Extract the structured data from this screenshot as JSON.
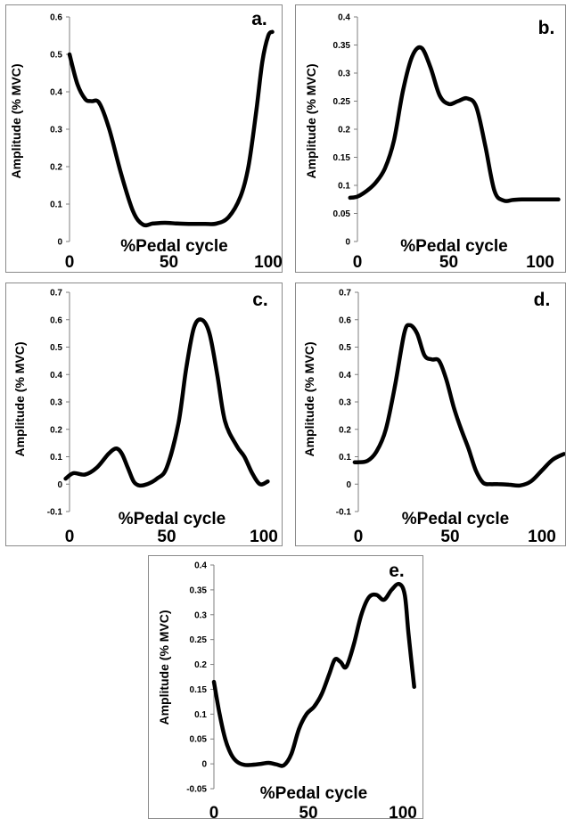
{
  "chart_data": [
    {
      "type": "line",
      "panel_label": "a.",
      "xlabel": "%Pedal cycle",
      "ylabel": "Amplitude (% MVC)",
      "xlim": [
        0,
        100
      ],
      "ylim": [
        0,
        0.6
      ],
      "yticks": [
        0,
        0.1,
        0.2,
        0.3,
        0.4,
        0.5,
        0.6
      ],
      "ytick_labels": [
        "0",
        "0.1",
        "0.2",
        "0.3",
        "0.4",
        "0.5",
        "0.6"
      ],
      "xticks": [
        0,
        50,
        100
      ],
      "xtick_labels": [
        "0",
        "50",
        "100"
      ],
      "series": [
        {
          "x": [
            0,
            4,
            8,
            11,
            15,
            20,
            26,
            32,
            37,
            42,
            48,
            54,
            60,
            68,
            74,
            80,
            86,
            90,
            94,
            97,
            100,
            102
          ],
          "y": [
            0.5,
            0.42,
            0.38,
            0.375,
            0.37,
            0.3,
            0.18,
            0.08,
            0.045,
            0.048,
            0.05,
            0.048,
            0.047,
            0.047,
            0.048,
            0.065,
            0.12,
            0.2,
            0.35,
            0.48,
            0.55,
            0.56
          ]
        }
      ]
    },
    {
      "type": "line",
      "panel_label": "b.",
      "xlabel": "%Pedal cycle",
      "ylabel": "Amplitude (% MVC)",
      "xlim": [
        0,
        100
      ],
      "ylim": [
        0,
        0.4
      ],
      "yticks": [
        0,
        0.05,
        0.1,
        0.15,
        0.2,
        0.25,
        0.3,
        0.35,
        0.4
      ],
      "ytick_labels": [
        "0",
        "0.05",
        "0.1",
        "0.15",
        "0.2",
        "0.25",
        "0.3",
        "0.35",
        "0.4"
      ],
      "xticks": [
        0,
        50,
        100
      ],
      "xtick_labels": [
        "0",
        "50",
        "100"
      ],
      "series": [
        {
          "x": [
            -4,
            0,
            5,
            10,
            15,
            20,
            25,
            30,
            35,
            40,
            45,
            50,
            55,
            60,
            65,
            70,
            75,
            80,
            85,
            90,
            100,
            110
          ],
          "y": [
            0.078,
            0.08,
            0.09,
            0.105,
            0.13,
            0.18,
            0.27,
            0.33,
            0.345,
            0.31,
            0.26,
            0.245,
            0.25,
            0.255,
            0.24,
            0.17,
            0.09,
            0.073,
            0.074,
            0.075,
            0.075,
            0.075
          ]
        }
      ]
    },
    {
      "type": "line",
      "panel_label": "c.",
      "xlabel": "%Pedal cycle",
      "ylabel": "Amplitude (% MVC)",
      "xlim": [
        0,
        100
      ],
      "ylim": [
        -0.1,
        0.7
      ],
      "yticks": [
        -0.1,
        0,
        0.1,
        0.2,
        0.3,
        0.4,
        0.5,
        0.6,
        0.7
      ],
      "ytick_labels": [
        "-0.1",
        "0",
        "0.1",
        "0.2",
        "0.3",
        "0.4",
        "0.5",
        "0.6",
        "0.7"
      ],
      "xticks": [
        0,
        50,
        100
      ],
      "xtick_labels": [
        "0",
        "50",
        "100"
      ],
      "series": [
        {
          "x": [
            -2,
            2,
            8,
            14,
            20,
            24,
            27,
            30,
            33,
            36,
            40,
            45,
            50,
            56,
            60,
            64,
            68,
            72,
            76,
            80,
            86,
            90,
            94,
            98,
            102
          ],
          "y": [
            0.02,
            0.04,
            0.035,
            0.06,
            0.11,
            0.13,
            0.11,
            0.06,
            0.01,
            -0.005,
            0.0,
            0.02,
            0.06,
            0.22,
            0.42,
            0.57,
            0.6,
            0.55,
            0.4,
            0.23,
            0.14,
            0.1,
            0.04,
            0.0,
            0.01
          ]
        }
      ]
    },
    {
      "type": "line",
      "panel_label": "d.",
      "xlabel": "%Pedal cycle",
      "ylabel": "Amplitude (% MVC)",
      "xlim": [
        0,
        100
      ],
      "ylim": [
        -0.1,
        0.7
      ],
      "yticks": [
        -0.1,
        0,
        0.1,
        0.2,
        0.3,
        0.4,
        0.5,
        0.6,
        0.7
      ],
      "ytick_labels": [
        "-0.1",
        "0",
        "0.1",
        "0.2",
        "0.3",
        "0.4",
        "0.5",
        "0.6",
        "0.7"
      ],
      "xticks": [
        0,
        50,
        100
      ],
      "xtick_labels": [
        "0",
        "50",
        "100"
      ],
      "series": [
        {
          "x": [
            -2,
            0,
            5,
            10,
            15,
            20,
            25,
            28,
            32,
            36,
            40,
            44,
            48,
            52,
            56,
            60,
            64,
            68,
            72,
            76,
            82,
            88,
            94,
            100,
            106,
            112
          ],
          "y": [
            0.08,
            0.08,
            0.085,
            0.12,
            0.2,
            0.36,
            0.55,
            0.58,
            0.55,
            0.47,
            0.455,
            0.45,
            0.38,
            0.28,
            0.2,
            0.13,
            0.05,
            0.005,
            0.0,
            0.0,
            -0.002,
            -0.005,
            0.01,
            0.05,
            0.09,
            0.11
          ]
        }
      ]
    },
    {
      "type": "line",
      "panel_label": "e.",
      "xlabel": "%Pedal cycle",
      "ylabel": "Amplitude (% MVC)",
      "xlim": [
        0,
        100
      ],
      "ylim": [
        -0.05,
        0.4
      ],
      "yticks": [
        -0.05,
        0,
        0.05,
        0.1,
        0.15,
        0.2,
        0.25,
        0.3,
        0.35,
        0.4
      ],
      "ytick_labels": [
        "-0.05",
        "0",
        "0.05",
        "0.1",
        "0.15",
        "0.2",
        "0.25",
        "0.3",
        "0.35",
        "0.4"
      ],
      "xticks": [
        0,
        50,
        100
      ],
      "xtick_labels": [
        "0",
        "50",
        "100"
      ],
      "series": [
        {
          "x": [
            0,
            3,
            6,
            9,
            12,
            16,
            20,
            25,
            29,
            33,
            37,
            41,
            45,
            49,
            53,
            57,
            61,
            64,
            67,
            70,
            74,
            78,
            82,
            86,
            90,
            94,
            98,
            101,
            103,
            106
          ],
          "y": [
            0.165,
            0.1,
            0.05,
            0.02,
            0.005,
            -0.002,
            -0.002,
            0.0,
            0.002,
            -0.001,
            -0.003,
            0.02,
            0.07,
            0.1,
            0.115,
            0.14,
            0.18,
            0.21,
            0.205,
            0.195,
            0.24,
            0.3,
            0.335,
            0.34,
            0.33,
            0.35,
            0.362,
            0.34,
            0.26,
            0.155
          ]
        }
      ]
    }
  ]
}
